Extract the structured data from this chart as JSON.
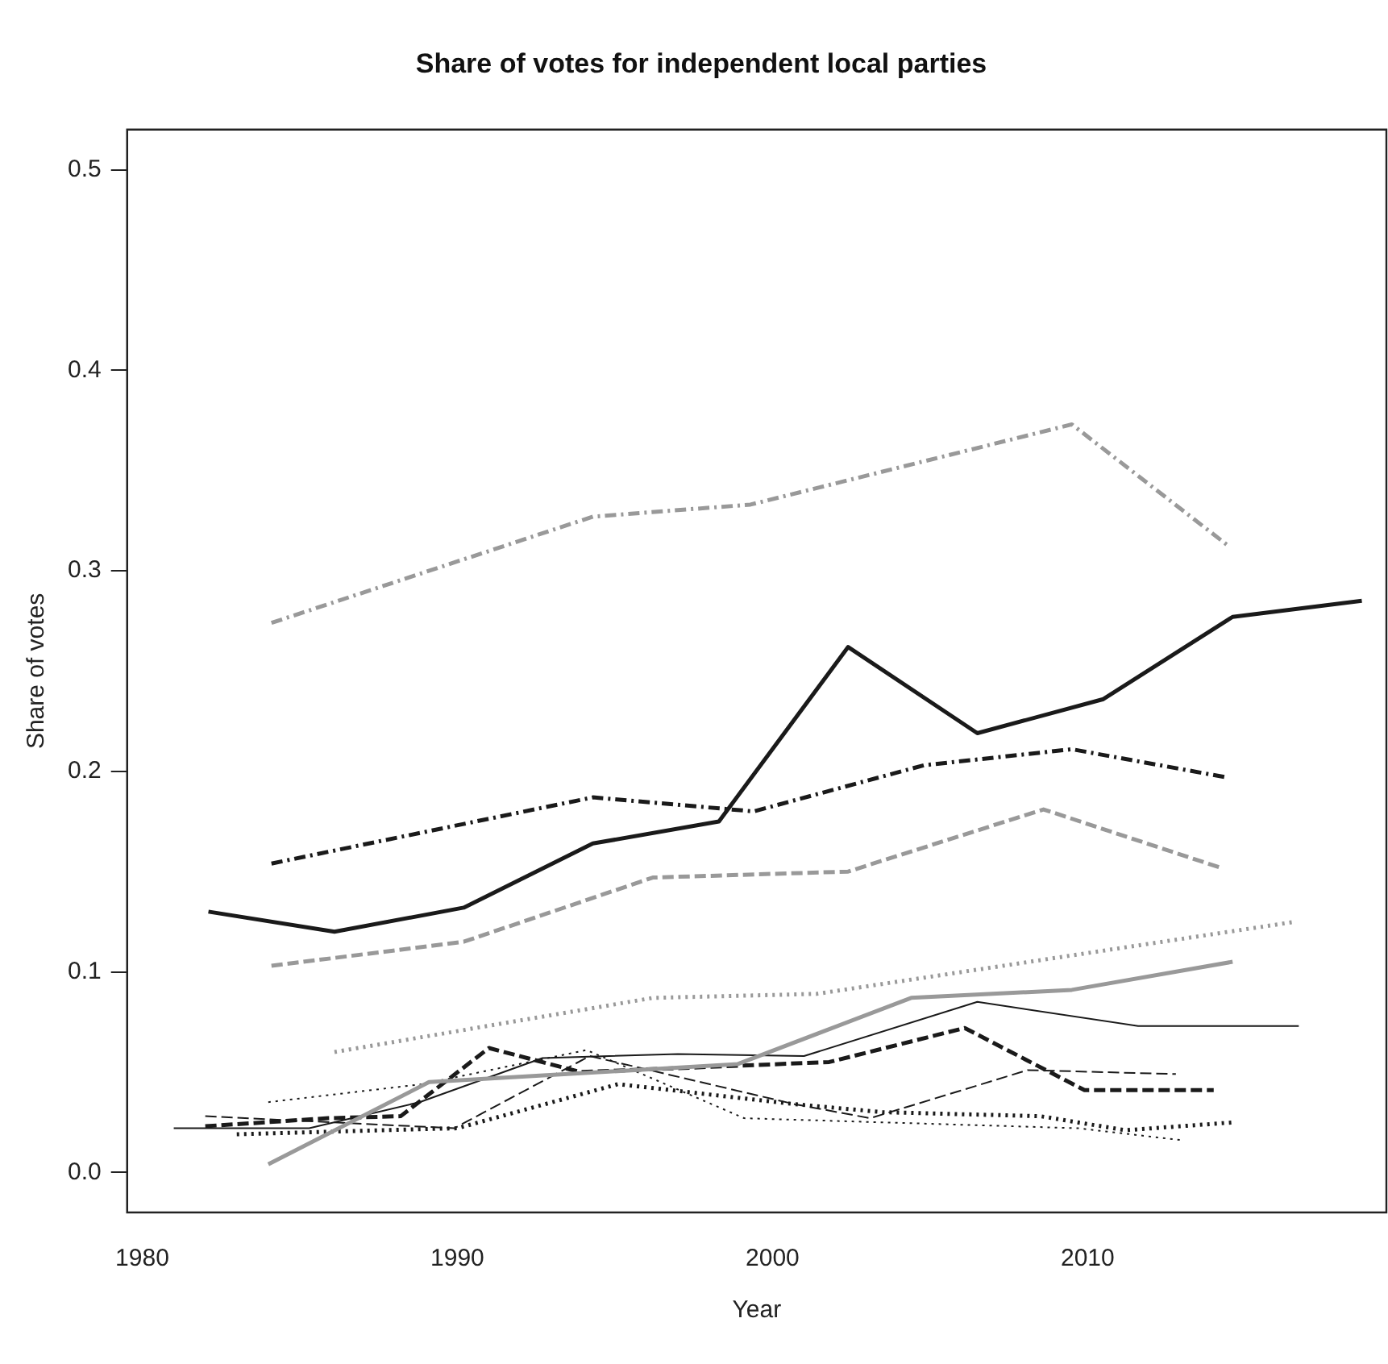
{
  "chart_data": {
    "type": "line",
    "title": "Share of votes for independent local parties",
    "xlabel": "Year",
    "ylabel": "Share of votes",
    "xlim": [
      1979.52,
      2019.48
    ],
    "xticks": [
      1980,
      1990,
      2000,
      2010
    ],
    "ylim": [
      -0.02,
      0.52
    ],
    "yticks": [
      {
        "value": 0,
        "label": "0.0"
      },
      0.1,
      0.2,
      0.3,
      0.4,
      0.5
    ],
    "grid": false,
    "legend": false,
    "marker": "none",
    "series": [
      {
        "color": "#999999",
        "line_style": "dashdot",
        "x": [
          1984.1,
          1994.3,
          1999.3,
          2009.5,
          2014.5
        ],
        "values": [
          0.274,
          0.327,
          0.333,
          0.373,
          0.312
        ]
      },
      {
        "color": "#1a1a1a",
        "line_style": "solid",
        "x": [
          1982.1,
          1986.1,
          1990.2,
          1994.3,
          1998.3,
          2002.4,
          2006.5,
          2010.5,
          2014.6,
          2018.7
        ],
        "values": [
          0.13,
          0.12,
          0.132,
          0.164,
          0.175,
          0.262,
          0.219,
          0.236,
          0.277,
          0.285
        ]
      },
      {
        "color": "#1a1a1a",
        "line_style": "dashdot",
        "x": [
          1984.1,
          1994.3,
          1999.4,
          2004.8,
          2009.5,
          2014.4
        ],
        "values": [
          0.154,
          0.187,
          0.18,
          0.203,
          0.211,
          0.197
        ]
      },
      {
        "color": "#999999",
        "line_style": "dashed",
        "x": [
          1984.1,
          1990.2,
          1996.2,
          2002.4,
          2008.6,
          2014.2
        ],
        "values": [
          0.103,
          0.115,
          0.147,
          0.15,
          0.181,
          0.152
        ]
      },
      {
        "color": "#999999",
        "line_style": "dotted",
        "x": [
          1986.1,
          1996.2,
          2001.4,
          2016.6
        ],
        "values": [
          0.06,
          0.087,
          0.089,
          0.125
        ]
      },
      {
        "color": "#999999",
        "line_style": "solid",
        "x": [
          1984.0,
          1989.1,
          1998.9,
          2004.4,
          2009.5,
          2014.6
        ],
        "values": [
          0.004,
          0.045,
          0.054,
          0.087,
          0.091,
          0.105
        ]
      },
      {
        "color": "#1a1a1a",
        "line_style": "solid",
        "x": [
          1981.0,
          1985.3,
          1988.8,
          1992.7,
          1997.0,
          2001.0,
          2006.5,
          2011.6,
          2016.7
        ],
        "values": [
          0.022,
          0.022,
          0.035,
          0.057,
          0.059,
          0.058,
          0.085,
          0.073,
          0.073
        ]
      },
      {
        "color": "#1a1a1a",
        "line_style": "dashed",
        "x": [
          1982.0,
          1985.9,
          1988.2,
          1991.0,
          1993.9,
          2001.8,
          2006.1,
          2009.9,
          2014.0
        ],
        "values": [
          0.023,
          0.027,
          0.028,
          0.062,
          0.05,
          0.055,
          0.072,
          0.041,
          0.041
        ]
      },
      {
        "color": "#1a1a1a",
        "line_style": "dashed",
        "x": [
          1982.0,
          1989.9,
          1994.2,
          2000.7,
          2003.1,
          2008.1,
          2012.8
        ],
        "values": [
          0.028,
          0.022,
          0.058,
          0.034,
          0.027,
          0.051,
          0.049
        ]
      },
      {
        "color": "#1a1a1a",
        "line_style": "dotted",
        "x": [
          1983.0,
          1990.0,
          1995.1,
          2000.7,
          2003.5,
          2008.5,
          2011.2,
          2014.7
        ],
        "values": [
          0.019,
          0.022,
          0.044,
          0.034,
          0.03,
          0.028,
          0.021,
          0.025
        ]
      },
      {
        "color": "#1a1a1a",
        "line_style": "dotted",
        "x": [
          1984.0,
          1988.9,
          1994.1,
          1999.1,
          2009.7,
          2013.0
        ],
        "values": [
          0.035,
          0.044,
          0.061,
          0.027,
          0.022,
          0.016
        ]
      }
    ]
  }
}
